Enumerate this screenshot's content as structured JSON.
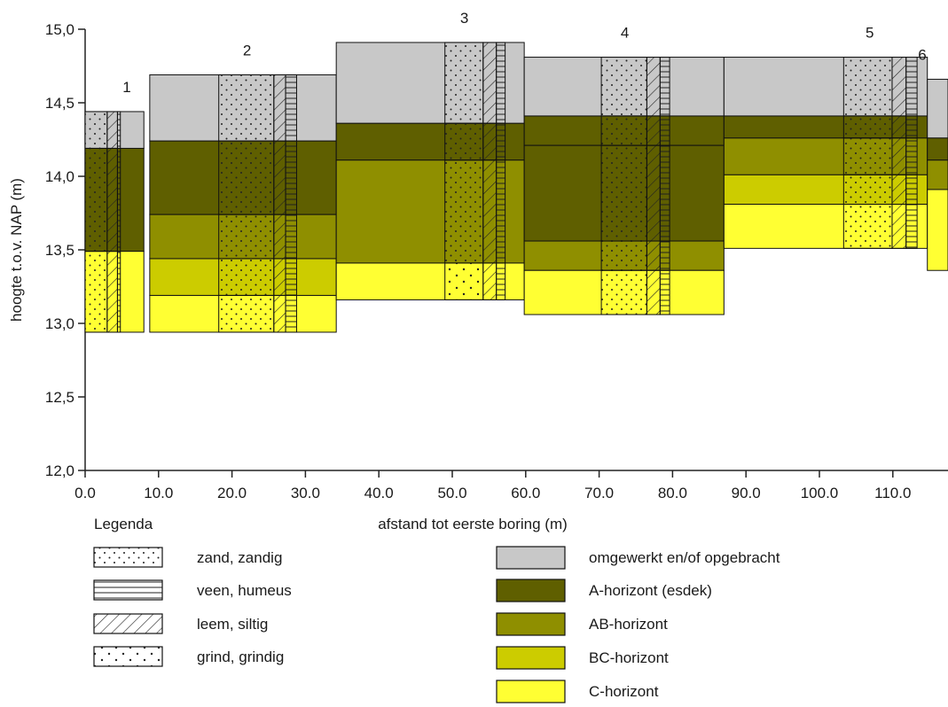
{
  "chart_data": {
    "type": "soil-profile",
    "ylabel": "hoogte t.o.v. NAP (m)",
    "xlabel": "afstand tot eerste boring (m)",
    "y_ticks": [
      "12,0",
      "12,5",
      "13,0",
      "13,5",
      "14,0",
      "14,5",
      "15,0"
    ],
    "y_tick_values": [
      12.0,
      12.5,
      13.0,
      13.5,
      14.0,
      14.5,
      15.0
    ],
    "x_ticks": [
      "0.0",
      "10.0",
      "20.0",
      "30.0",
      "40.0",
      "50.0",
      "60.0",
      "70.0",
      "80.0",
      "90.0",
      "100.0",
      "110.0",
      "120.0"
    ],
    "x_tick_values": [
      0,
      10,
      20,
      30,
      40,
      50,
      60,
      70,
      80,
      90,
      100,
      110,
      120
    ],
    "xlim": [
      0,
      129
    ],
    "ylim": [
      12.0,
      15.0
    ],
    "colors": {
      "omgewerkt": "#c8c8c8",
      "A": "#5f5f00",
      "AB": "#8f8f00",
      "BC": "#cccc00",
      "C": "#ffff33"
    },
    "borings": [
      {
        "label": "1",
        "x_from": 0,
        "x_to": 8.0,
        "texture_x_from": 0,
        "texture_x_to": 3.0,
        "strip_x_from": 3.0,
        "strip_x_to": 4.4,
        "strip2_x_from": 4.4,
        "strip2_x_to": 4.8,
        "layers": [
          {
            "top": 14.44,
            "bottom": 14.19,
            "horizon": "omgewerkt",
            "texture": "zand"
          },
          {
            "top": 14.19,
            "bottom": 13.49,
            "horizon": "A",
            "texture": "zand"
          },
          {
            "top": 13.49,
            "bottom": 12.94,
            "horizon": "C",
            "texture": "zand"
          }
        ]
      },
      {
        "label": "2",
        "x_from": 8.8,
        "x_to": 34.2,
        "texture_x_from": 18.2,
        "texture_x_to": 25.7,
        "strip_x_from": 25.7,
        "strip_x_to": 27.3,
        "strip2_x_from": 27.3,
        "strip2_x_to": 28.8,
        "layers": [
          {
            "top": 14.69,
            "bottom": 14.24,
            "horizon": "omgewerkt",
            "texture": "zand"
          },
          {
            "top": 14.24,
            "bottom": 13.74,
            "horizon": "A",
            "texture": "zand"
          },
          {
            "top": 13.74,
            "bottom": 13.44,
            "horizon": "AB",
            "texture": "zand"
          },
          {
            "top": 13.44,
            "bottom": 13.19,
            "horizon": "BC",
            "texture": "zand"
          },
          {
            "top": 13.19,
            "bottom": 12.94,
            "horizon": "C",
            "texture": "zand"
          }
        ]
      },
      {
        "label": "3",
        "x_from": 34.2,
        "x_to": 59.8,
        "texture_x_from": 49.0,
        "texture_x_to": 54.2,
        "strip_x_from": 54.2,
        "strip_x_to": 56.0,
        "strip2_x_from": 56.0,
        "strip2_x_to": 57.2,
        "layers": [
          {
            "top": 14.91,
            "bottom": 14.36,
            "horizon": "omgewerkt",
            "texture": "zand"
          },
          {
            "top": 14.36,
            "bottom": 14.11,
            "horizon": "A",
            "texture": "zand"
          },
          {
            "top": 14.11,
            "bottom": 13.41,
            "horizon": "AB",
            "texture": "zand"
          },
          {
            "top": 13.41,
            "bottom": 13.16,
            "horizon": "C",
            "texture": "grind"
          }
        ]
      },
      {
        "label": "4",
        "x_from": 59.8,
        "x_to": 87.0,
        "texture_x_from": 70.3,
        "texture_x_to": 76.5,
        "strip_x_from": 76.5,
        "strip_x_to": 78.3,
        "strip2_x_from": 78.3,
        "strip2_x_to": 79.6,
        "layers": [
          {
            "top": 14.81,
            "bottom": 14.41,
            "horizon": "omgewerkt",
            "texture": "zand"
          },
          {
            "top": 14.41,
            "bottom": 14.21,
            "horizon": "A",
            "texture": "zand"
          },
          {
            "top": 14.21,
            "bottom": 13.56,
            "horizon": "A",
            "texture": "zand"
          },
          {
            "top": 13.56,
            "bottom": 13.36,
            "horizon": "AB",
            "texture": "zand"
          },
          {
            "top": 13.36,
            "bottom": 13.06,
            "horizon": "C",
            "texture": "zand"
          }
        ]
      },
      {
        "label": "5",
        "x_from": 87.0,
        "x_to": 114.7,
        "texture_x_from": 103.3,
        "texture_x_to": 109.9,
        "strip_x_from": 109.9,
        "strip_x_to": 111.8,
        "strip2_x_from": 111.8,
        "strip2_x_to": 113.3,
        "layers": [
          {
            "top": 14.81,
            "bottom": 14.41,
            "horizon": "omgewerkt",
            "texture": "zand"
          },
          {
            "top": 14.41,
            "bottom": 14.26,
            "horizon": "A",
            "texture": "zand"
          },
          {
            "top": 14.26,
            "bottom": 14.01,
            "horizon": "AB",
            "texture": "zand"
          },
          {
            "top": 14.01,
            "bottom": 13.81,
            "horizon": "BC",
            "texture": "zand"
          },
          {
            "top": 13.81,
            "bottom": 13.51,
            "horizon": "C",
            "texture": "zand"
          }
        ]
      },
      {
        "label": "6",
        "x_from": 114.7,
        "x_to": 129.0,
        "texture_x_from": 120.0,
        "texture_x_to": 127.1,
        "strip_x_from": 127.1,
        "strip_x_to": 128.6,
        "strip2_x_from": 128.6,
        "strip2_x_to": 129.0,
        "layers": [
          {
            "top": 14.66,
            "bottom": 14.26,
            "horizon": "omgewerkt",
            "texture": "zand"
          },
          {
            "top": 14.26,
            "bottom": 14.11,
            "horizon": "A",
            "texture": "zand"
          },
          {
            "top": 14.11,
            "bottom": 13.91,
            "horizon": "AB",
            "texture": "zand"
          },
          {
            "top": 13.91,
            "bottom": 13.36,
            "horizon": "C",
            "texture": "zand"
          }
        ]
      }
    ]
  },
  "legend": {
    "title": "Legenda",
    "texture_items": [
      {
        "key": "zand",
        "label": "zand, zandig"
      },
      {
        "key": "veen",
        "label": "veen, humeus"
      },
      {
        "key": "leem",
        "label": "leem, siltig"
      },
      {
        "key": "grind",
        "label": "grind, grindig"
      }
    ],
    "horizon_items": [
      {
        "key": "omgewerkt",
        "label": "omgewerkt en/of opgebracht"
      },
      {
        "key": "A",
        "label": "A-horizont (esdek)"
      },
      {
        "key": "AB",
        "label": "AB-horizont"
      },
      {
        "key": "BC",
        "label": "BC-horizont"
      },
      {
        "key": "C",
        "label": "C-horizont"
      }
    ]
  }
}
